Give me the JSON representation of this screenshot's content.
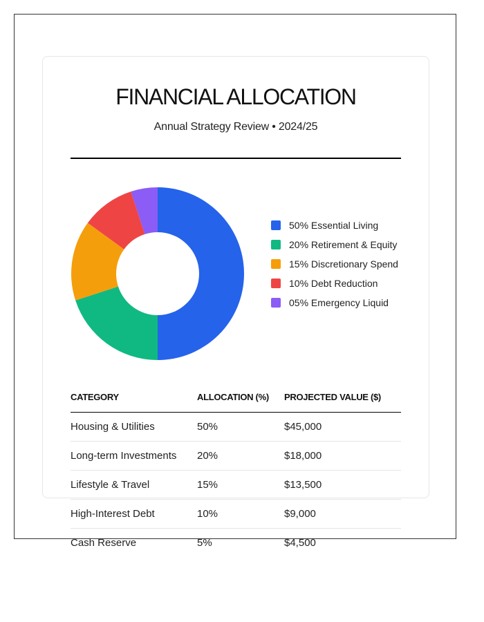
{
  "header": {
    "title": "FINANCIAL ALLOCATION",
    "subtitle": "Annual Strategy Review • 2024/25"
  },
  "legend": {
    "items": [
      {
        "label": "50% Essential Living",
        "color": "#2563eb"
      },
      {
        "label": "20% Retirement & Equity",
        "color": "#10b981"
      },
      {
        "label": "15% Discretionary Spend",
        "color": "#f59e0b"
      },
      {
        "label": "10% Debt Reduction",
        "color": "#ef4444"
      },
      {
        "label": "05% Emergency Liquid",
        "color": "#8b5cf6"
      }
    ]
  },
  "table": {
    "headers": [
      "CATEGORY",
      "ALLOCATION (%)",
      "PROJECTED VALUE ($)"
    ],
    "rows": [
      [
        "Housing & Utilities",
        "50%",
        "$45,000"
      ],
      [
        "Long-term Investments",
        "20%",
        "$18,000"
      ],
      [
        "Lifestyle & Travel",
        "15%",
        "$13,500"
      ],
      [
        "High-Interest Debt",
        "10%",
        "$9,000"
      ],
      [
        "Cash Reserve",
        "5%",
        "$4,500"
      ]
    ]
  },
  "chart_data": {
    "type": "pie",
    "variant": "donut",
    "title": "FINANCIAL ALLOCATION",
    "subtitle": "Annual Strategy Review • 2024/25",
    "categories": [
      "Essential Living",
      "Retirement & Equity",
      "Discretionary Spend",
      "Debt Reduction",
      "Emergency Liquid"
    ],
    "values": [
      50,
      20,
      15,
      10,
      5
    ],
    "colors": [
      "#2563eb",
      "#10b981",
      "#f59e0b",
      "#ef4444",
      "#8b5cf6"
    ],
    "start_angle": "12 o'clock, clockwise",
    "legend_position": "right",
    "table": {
      "columns": [
        "CATEGORY",
        "ALLOCATION (%)",
        "PROJECTED VALUE ($)"
      ],
      "rows": [
        {
          "category": "Housing & Utilities",
          "allocation": 50,
          "projected_value": 45000
        },
        {
          "category": "Long-term Investments",
          "allocation": 20,
          "projected_value": 18000
        },
        {
          "category": "Lifestyle & Travel",
          "allocation": 15,
          "projected_value": 13500
        },
        {
          "category": "High-Interest Debt",
          "allocation": 10,
          "projected_value": 9000
        },
        {
          "category": "Cash Reserve",
          "allocation": 5,
          "projected_value": 4500
        }
      ]
    }
  }
}
